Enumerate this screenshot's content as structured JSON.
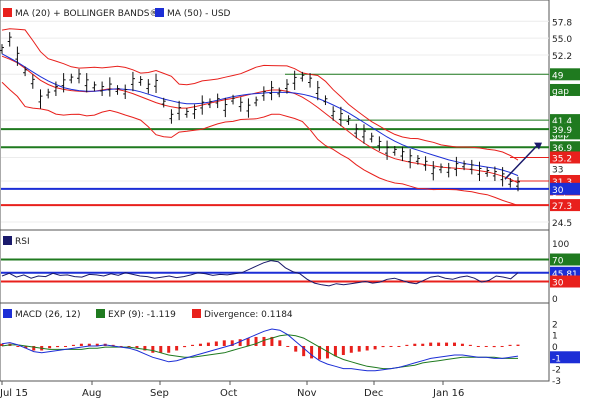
{
  "header": {
    "legend": [
      {
        "label": "MA (20) + BOLLINGER BANDS®",
        "color": "#e8201c"
      },
      {
        "label": "MA (50) - USD",
        "color": "#1c2ed6"
      }
    ]
  },
  "chart_data": [
    {
      "type": "line",
      "panel": "price",
      "x_ticks": [
        "Jul 15",
        "Aug",
        "Sep",
        "Oct",
        "Nov",
        "Dec",
        "Jan 16"
      ],
      "y_ticks": [
        24.5,
        27.3,
        30,
        31.3,
        35.2,
        36.9,
        39.9,
        41.4,
        49,
        52.2,
        55.0,
        57.8
      ],
      "ylim": [
        23.5,
        60
      ],
      "price_series": [
        53.2,
        54.8,
        52.0,
        49.5,
        47.8,
        44.9,
        45.8,
        46.6,
        47.6,
        48.3,
        48.7,
        47.6,
        47.0,
        46.6,
        46.9,
        46.4,
        46.1,
        47.8,
        47.9,
        47.0,
        47.5,
        44.3,
        42.0,
        43.0,
        42.6,
        42.8,
        43.9,
        44.2,
        44.6,
        43.5,
        44.8,
        44.0,
        43.4,
        44.5,
        45.8,
        46.3,
        46.0,
        47.0,
        48.0,
        48.6,
        48.0,
        46.3,
        44.7,
        42.5,
        42.0,
        41.4,
        39.6,
        39.1,
        38.5,
        37.5,
        36.4,
        36.3,
        35.8,
        35.0,
        34.8,
        34.2,
        33.0,
        33.4,
        33.1,
        33.7,
        33.9,
        33.6,
        32.9,
        32.8,
        32.5,
        32.0,
        31.0,
        30.8
      ],
      "ma50_series": [
        52.4,
        51.7,
        51.0,
        50.2,
        49.4,
        48.6,
        47.9,
        47.3,
        46.8,
        46.5,
        46.3,
        46.2,
        46.2,
        46.3,
        46.5,
        46.6,
        46.5,
        46.4,
        46.1,
        45.7,
        45.3,
        44.9,
        44.6,
        44.3,
        44.1,
        44.1,
        44.2,
        44.4,
        44.7,
        45.0,
        45.3,
        45.5,
        45.7,
        45.8,
        45.9,
        46.0,
        46.0,
        46.0,
        45.9,
        45.7,
        45.4,
        45.0,
        44.5,
        43.9,
        43.3,
        42.6,
        41.8,
        41.0,
        40.2,
        39.4,
        38.6,
        37.9,
        37.3,
        36.8,
        36.4,
        36.0,
        35.6,
        35.2,
        34.8,
        34.5,
        34.2,
        34.0,
        33.8,
        33.6,
        33.4,
        33.1,
        32.7,
        32.2
      ],
      "ma20_series": [
        52.0,
        51.5,
        50.9,
        50.0,
        49.0,
        48.0,
        47.3,
        46.8,
        46.5,
        46.3,
        46.2,
        46.1,
        46.2,
        46.4,
        46.6,
        46.5,
        46.2,
        45.8,
        45.3,
        44.8,
        44.3,
        43.9,
        43.6,
        43.4,
        43.4,
        43.6,
        43.9,
        44.2,
        44.5,
        44.8,
        45.0,
        45.3,
        45.6,
        45.9,
        46.2,
        46.4,
        46.4,
        46.2,
        45.8,
        45.2,
        44.4,
        43.5,
        42.5,
        41.5,
        40.5,
        39.5,
        38.5,
        37.6,
        36.8,
        36.1,
        35.5,
        35.0,
        34.7,
        34.4,
        34.2,
        34.0,
        33.8,
        33.6,
        33.5,
        33.4,
        33.3,
        33.2,
        33.0,
        32.8,
        32.5,
        32.1,
        31.6,
        31.0
      ],
      "band_width": 3.3,
      "channel_lines": [
        49,
        41.4,
        39.9,
        36.9,
        35.2,
        31.3,
        27.3
      ],
      "forecast_arrow": {
        "from": 31.6,
        "to": 37.5
      },
      "labels": [
        {
          "text": "57.8",
          "style": "tick"
        },
        {
          "text": "55.0",
          "style": "tick"
        },
        {
          "text": "52.2",
          "style": "tick"
        },
        {
          "text": "49",
          "style": "badge",
          "color": "#1f7a1f"
        },
        {
          "text": "gap",
          "style": "badge",
          "color": "#1f7a1f"
        },
        {
          "text": "41.4",
          "style": "badge",
          "color": "#1f7a1f"
        },
        {
          "text": "gap",
          "style": "badge",
          "color": "#1f7a1f"
        },
        {
          "text": "39.9",
          "style": "badge",
          "color": "#1f7a1f"
        },
        {
          "text": "36.9",
          "style": "badge",
          "color": "#1f7a1f"
        },
        {
          "text": "35.2",
          "style": "badge",
          "color": "#e8201c"
        },
        {
          "text": "33",
          "style": "tick"
        },
        {
          "text": "31.3",
          "style": "badge",
          "color": "#e8201c"
        },
        {
          "text": "gap",
          "style": "badge",
          "color": "#e8201c"
        },
        {
          "text": "30",
          "style": "badge",
          "color": "#1c2ed6"
        },
        {
          "text": "27.3",
          "style": "badge",
          "color": "#e8201c"
        },
        {
          "text": "24.5",
          "style": "tick"
        }
      ]
    },
    {
      "type": "line",
      "panel": "rsi",
      "title": "RSI",
      "y_ticks": [
        0,
        50,
        100
      ],
      "ylim": [
        0,
        100
      ],
      "levels": [
        {
          "value": 70,
          "color": "#1f7a1f"
        },
        {
          "value": 30,
          "color": "#e8201c"
        },
        {
          "value": 45.81,
          "color": "#1c2ed6"
        }
      ],
      "series": [
        40,
        45,
        38,
        42,
        36,
        40,
        39,
        45,
        41,
        42,
        39,
        38,
        43,
        42,
        40,
        44,
        41,
        46,
        43,
        40,
        39,
        36,
        38,
        40,
        37,
        39,
        42,
        46,
        44,
        41,
        43,
        42,
        44,
        46,
        52,
        58,
        64,
        68,
        66,
        55,
        48,
        44,
        34,
        27,
        24,
        22,
        26,
        24,
        26,
        28,
        30,
        27,
        29,
        34,
        36,
        32,
        28,
        26,
        32,
        38,
        40,
        36,
        34,
        38,
        40,
        36,
        29,
        32,
        40,
        38,
        35,
        46
      ],
      "labels": [
        {
          "text": "100",
          "style": "tick"
        },
        {
          "text": "70",
          "style": "badge",
          "color": "#1f7a1f"
        },
        {
          "text": "45.81",
          "style": "badge",
          "color": "#1c2ed6"
        },
        {
          "text": "30",
          "style": "badge",
          "color": "#e8201c"
        },
        {
          "text": "0",
          "style": "tick"
        }
      ]
    },
    {
      "type": "line",
      "panel": "macd",
      "title": "MACD (26, 12)",
      "legend": [
        {
          "label": "MACD (26, 12)",
          "color": "#1c2ed6"
        },
        {
          "label": "EXP (9): -1.119",
          "color": "#1f7a1f"
        },
        {
          "label": "Divergence: 0.1184",
          "color": "#e8201c"
        }
      ],
      "y_ticks": [
        2,
        1,
        0,
        -1,
        -2,
        -3
      ],
      "ylim": [
        -3.1,
        2.3
      ],
      "macd_series": [
        0.2,
        0.3,
        0.1,
        -0.2,
        -0.5,
        -0.6,
        -0.5,
        -0.4,
        -0.3,
        -0.2,
        -0.1,
        0.0,
        0.0,
        0.1,
        0.0,
        -0.1,
        -0.2,
        -0.4,
        -0.7,
        -1.0,
        -1.2,
        -1.4,
        -1.3,
        -1.1,
        -0.9,
        -0.7,
        -0.5,
        -0.3,
        -0.1,
        0.1,
        0.4,
        0.7,
        1.0,
        1.3,
        1.5,
        1.4,
        1.0,
        0.4,
        -0.2,
        -0.8,
        -1.3,
        -1.6,
        -1.8,
        -2.0,
        -2.0,
        -2.1,
        -2.2,
        -2.2,
        -2.1,
        -2.0,
        -1.9,
        -1.7,
        -1.5,
        -1.3,
        -1.1,
        -1.0,
        -0.9,
        -0.8,
        -0.8,
        -0.9,
        -1.0,
        -1.0,
        -1.1,
        -1.1,
        -1.0,
        -0.9
      ],
      "signal_series": [
        0.0,
        0.1,
        0.1,
        0.0,
        -0.1,
        -0.2,
        -0.3,
        -0.3,
        -0.3,
        -0.3,
        -0.3,
        -0.2,
        -0.2,
        -0.1,
        -0.1,
        -0.1,
        -0.1,
        -0.2,
        -0.3,
        -0.4,
        -0.6,
        -0.8,
        -0.9,
        -1.0,
        -1.0,
        -0.9,
        -0.8,
        -0.7,
        -0.6,
        -0.4,
        -0.2,
        0.0,
        0.2,
        0.5,
        0.7,
        0.9,
        1.0,
        0.9,
        0.7,
        0.3,
        -0.1,
        -0.5,
        -0.9,
        -1.2,
        -1.4,
        -1.6,
        -1.8,
        -1.9,
        -2.0,
        -2.0,
        -1.9,
        -1.8,
        -1.7,
        -1.5,
        -1.4,
        -1.3,
        -1.2,
        -1.1,
        -1.0,
        -1.0,
        -1.0,
        -1.0,
        -1.0,
        -1.1,
        -1.1,
        -1.1
      ],
      "divergence_series": [
        0.2,
        0.2,
        0.0,
        -0.2,
        -0.4,
        -0.4,
        -0.2,
        -0.1,
        0.0,
        0.1,
        0.2,
        0.2,
        0.2,
        0.2,
        0.1,
        0.0,
        -0.1,
        -0.2,
        -0.4,
        -0.6,
        -0.6,
        -0.6,
        -0.4,
        -0.1,
        0.1,
        0.2,
        0.3,
        0.4,
        0.5,
        0.5,
        0.6,
        0.7,
        0.8,
        0.8,
        0.8,
        0.5,
        0.0,
        -0.5,
        -0.9,
        -1.1,
        -1.2,
        -1.1,
        -0.9,
        -0.8,
        -0.6,
        -0.5,
        -0.4,
        -0.3,
        -0.1,
        0.0,
        0.0,
        0.1,
        0.2,
        0.2,
        0.3,
        0.3,
        0.3,
        0.3,
        0.2,
        0.1,
        0.0,
        0.0,
        -0.1,
        0.0,
        0.1,
        0.12
      ],
      "labels": [
        {
          "text": "2",
          "style": "tick"
        },
        {
          "text": "1",
          "style": "tick"
        },
        {
          "text": "0",
          "style": "tick"
        },
        {
          "text": "-1",
          "style": "badge",
          "color": "#1c2ed6"
        },
        {
          "text": "-2",
          "style": "tick"
        },
        {
          "text": "-3",
          "style": "tick"
        }
      ]
    }
  ]
}
